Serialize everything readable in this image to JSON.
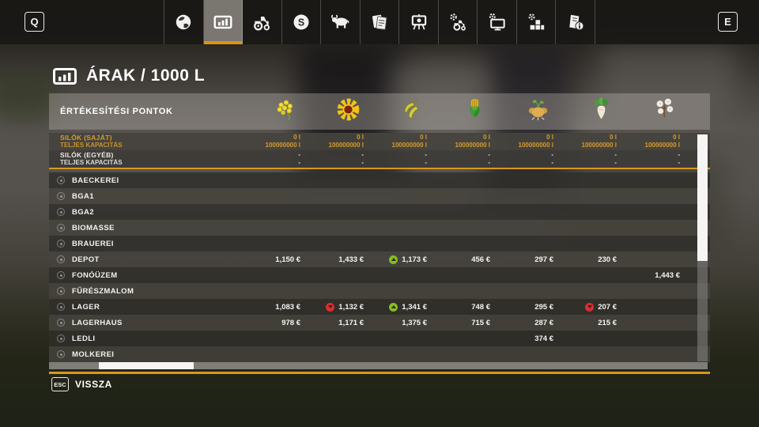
{
  "topbar": {
    "left_key": "Q",
    "right_key": "E",
    "tabs": [
      {
        "name": "map",
        "icon": "globe-icon",
        "selected": false
      },
      {
        "name": "prices",
        "icon": "bar-chart-icon",
        "selected": true
      },
      {
        "name": "vehicles",
        "icon": "tractor-icon",
        "selected": false
      },
      {
        "name": "finances",
        "icon": "money-coin-icon",
        "selected": false
      },
      {
        "name": "animals",
        "icon": "cow-icon",
        "selected": false
      },
      {
        "name": "contracts",
        "icon": "documents-icon",
        "selected": false
      },
      {
        "name": "production",
        "icon": "easel-board-icon",
        "selected": false
      },
      {
        "name": "maintenance",
        "icon": "tractor-gear-icon",
        "selected": false
      },
      {
        "name": "settings",
        "icon": "monitor-gear-icon",
        "selected": false
      },
      {
        "name": "construction",
        "icon": "blocks-gear-icon",
        "selected": false
      },
      {
        "name": "help",
        "icon": "document-info-icon",
        "selected": false
      }
    ]
  },
  "page": {
    "title": "ÁRAK / 1000 L"
  },
  "table": {
    "header_label": "ÉRTÉKESÍTÉSI PONTOK",
    "columns": [
      {
        "name": "canola",
        "icon": "canola-icon"
      },
      {
        "name": "sunflower",
        "icon": "sunflower-icon"
      },
      {
        "name": "soybean",
        "icon": "soybean-icon"
      },
      {
        "name": "corn",
        "icon": "corn-icon"
      },
      {
        "name": "potato",
        "icon": "potato-icon"
      },
      {
        "name": "sugar-beet",
        "icon": "sugar-beet-icon"
      },
      {
        "name": "cotton",
        "icon": "cotton-icon"
      }
    ],
    "silo_rows": [
      {
        "style": "own",
        "label1": "SILÓK (SAJÁT)",
        "label2": "TELJES KAPACITÁS",
        "values": [
          {
            "amount": "0 l",
            "capacity": "100000000 l"
          },
          {
            "amount": "0 l",
            "capacity": "100000000 l"
          },
          {
            "amount": "0 l",
            "capacity": "100000000 l"
          },
          {
            "amount": "0 l",
            "capacity": "100000000 l"
          },
          {
            "amount": "0 l",
            "capacity": "100000000 l"
          },
          {
            "amount": "0 l",
            "capacity": "100000000 l"
          },
          {
            "amount": "0 l",
            "capacity": "100000000 l"
          }
        ]
      },
      {
        "style": "other",
        "label1": "SILÓK (EGYÉB)",
        "label2": "TELJES KAPACITÁS",
        "values": [
          {
            "amount": "-",
            "capacity": "-"
          },
          {
            "amount": "-",
            "capacity": "-"
          },
          {
            "amount": "-",
            "capacity": "-"
          },
          {
            "amount": "-",
            "capacity": "-"
          },
          {
            "amount": "-",
            "capacity": "-"
          },
          {
            "amount": "-",
            "capacity": "-"
          },
          {
            "amount": "-",
            "capacity": "-"
          }
        ]
      }
    ],
    "rows": [
      {
        "name": "BAECKEREI",
        "prices": [
          "",
          "",
          "",
          "",
          "",
          "",
          ""
        ],
        "trends": [
          "",
          "",
          "",
          "",
          "",
          "",
          ""
        ]
      },
      {
        "name": "BGA1",
        "prices": [
          "",
          "",
          "",
          "",
          "",
          "",
          ""
        ],
        "trends": [
          "",
          "",
          "",
          "",
          "",
          "",
          ""
        ]
      },
      {
        "name": "BGA2",
        "prices": [
          "",
          "",
          "",
          "",
          "",
          "",
          ""
        ],
        "trends": [
          "",
          "",
          "",
          "",
          "",
          "",
          ""
        ]
      },
      {
        "name": "BIOMASSE",
        "prices": [
          "",
          "",
          "",
          "",
          "",
          "",
          ""
        ],
        "trends": [
          "",
          "",
          "",
          "",
          "",
          "",
          ""
        ]
      },
      {
        "name": "BRAUEREI",
        "prices": [
          "",
          "",
          "",
          "",
          "",
          "",
          ""
        ],
        "trends": [
          "",
          "",
          "",
          "",
          "",
          "",
          ""
        ]
      },
      {
        "name": "DEPOT",
        "prices": [
          "1,150 €",
          "1,433 €",
          "1,173 €",
          "456 €",
          "297 €",
          "230 €",
          ""
        ],
        "trends": [
          "",
          "",
          "up",
          "",
          "",
          "",
          ""
        ]
      },
      {
        "name": "FONÓÜZEM",
        "prices": [
          "",
          "",
          "",
          "",
          "",
          "",
          "1,443 €"
        ],
        "trends": [
          "",
          "",
          "",
          "",
          "",
          "",
          ""
        ]
      },
      {
        "name": "FŰRÉSZMALOM",
        "prices": [
          "",
          "",
          "",
          "",
          "",
          "",
          ""
        ],
        "trends": [
          "",
          "",
          "",
          "",
          "",
          "",
          ""
        ]
      },
      {
        "name": "LAGER",
        "prices": [
          "1,083 €",
          "1,132 €",
          "1,341 €",
          "748 €",
          "295 €",
          "207 €",
          ""
        ],
        "trends": [
          "",
          "down",
          "up",
          "",
          "",
          "down",
          ""
        ]
      },
      {
        "name": "LAGERHAUS",
        "prices": [
          "978 €",
          "1,171 €",
          "1,375 €",
          "715 €",
          "287 €",
          "215 €",
          ""
        ],
        "trends": [
          "",
          "",
          "",
          "",
          "",
          "",
          ""
        ]
      },
      {
        "name": "LEDLI",
        "prices": [
          "",
          "",
          "",
          "",
          "374 €",
          "",
          ""
        ],
        "trends": [
          "",
          "",
          "",
          "",
          "",
          "",
          ""
        ]
      },
      {
        "name": "MOLKEREI",
        "prices": [
          "",
          "",
          "",
          "",
          "",
          "",
          ""
        ],
        "trends": [
          "",
          "",
          "",
          "",
          "",
          "",
          ""
        ]
      }
    ]
  },
  "footer": {
    "key": "ESC",
    "label": "VISSZA"
  },
  "colors": {
    "accent": "#dc9414",
    "silo_text": "#d99c28",
    "trend_up": "#86bc22",
    "trend_down": "#da2e33"
  }
}
